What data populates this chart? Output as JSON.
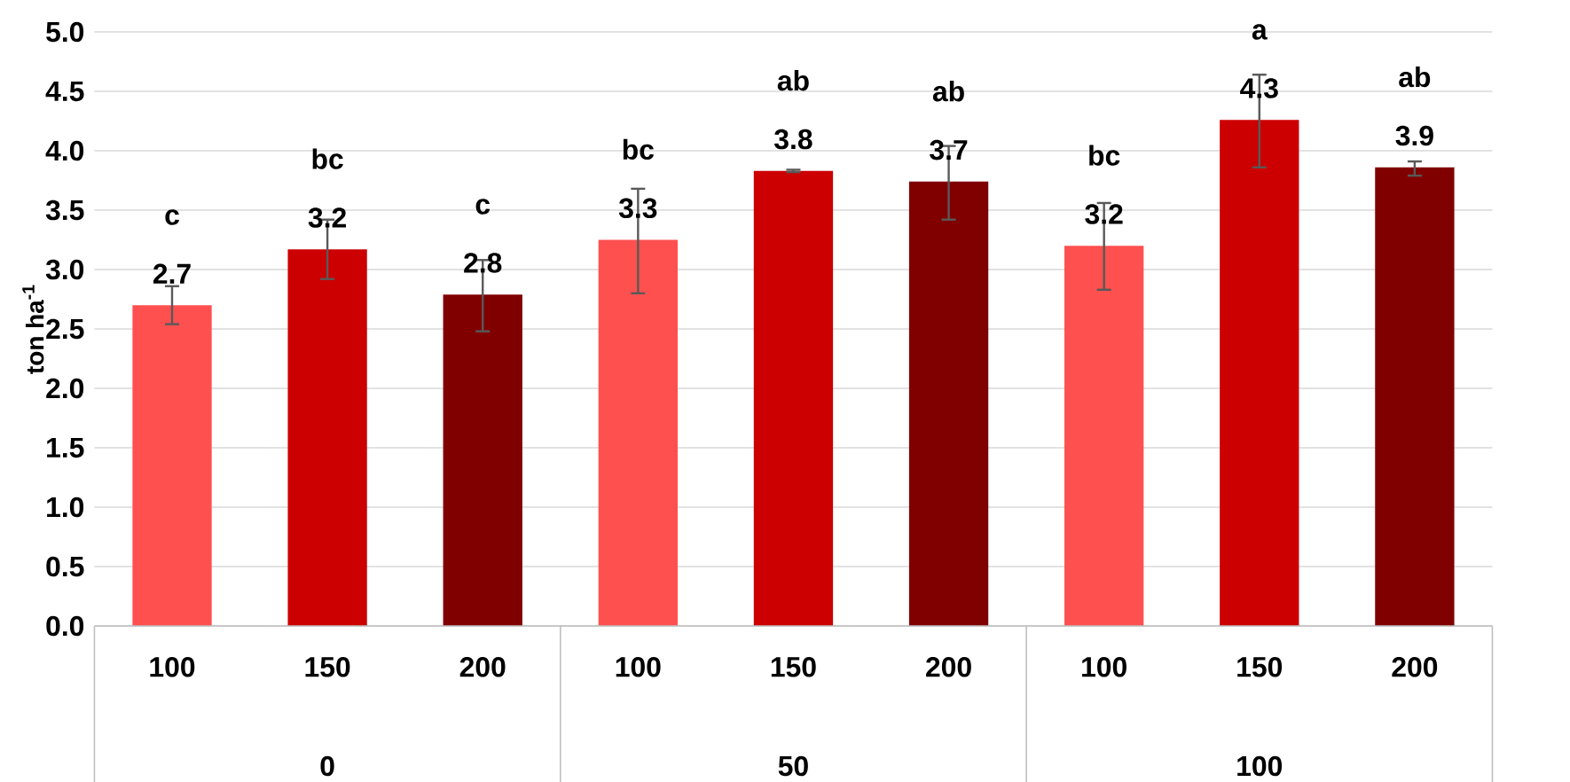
{
  "chart_data": {
    "type": "bar",
    "ylabel": "ton ha$^{-1}$",
    "categories": [
      "100",
      "150",
      "200",
      "100",
      "150",
      "200",
      "100",
      "150",
      "200"
    ],
    "values": [
      2.7,
      3.17,
      2.79,
      3.25,
      3.83,
      3.74,
      3.2,
      4.26,
      3.86
    ],
    "value_labels": [
      "2.7",
      "3.2",
      "2.8",
      "3.3",
      "3.8",
      "3.7",
      "3.2",
      "4.3",
      "3.9"
    ],
    "colors": [
      "#ff5050",
      "#cc0000",
      "#800000",
      "#ff5050",
      "#cc0000",
      "#800000",
      "#ff5050",
      "#cc0000",
      "#800000"
    ],
    "errors": [
      [
        2.54,
        2.86
      ],
      [
        2.92,
        3.42
      ],
      [
        2.48,
        3.08
      ],
      [
        2.8,
        3.68
      ],
      [
        3.82,
        3.84
      ],
      [
        3.42,
        4.04
      ],
      [
        2.83,
        3.56
      ],
      [
        3.86,
        4.64
      ],
      [
        3.79,
        3.91
      ]
    ],
    "ylim": [
      0,
      5
    ],
    "yticks": [
      {
        "value": 0,
        "label": "0.0"
      },
      {
        "value": 0.5,
        "label": "0.5"
      },
      {
        "value": 1,
        "label": "1.0"
      },
      {
        "value": 1.5,
        "label": "1.5"
      },
      {
        "value": 2,
        "label": "2.0"
      },
      {
        "value": 2.5,
        "label": "2.5"
      },
      {
        "value": 3,
        "label": "3.0"
      },
      {
        "value": 3.5,
        "label": "3.5"
      },
      {
        "value": 4,
        "label": "4.0"
      },
      {
        "value": 4.5,
        "label": "4.5"
      },
      {
        "value": 5,
        "label": "5.0"
      }
    ],
    "grid": "y",
    "annotations": [
      "c",
      "bc",
      "c",
      "bc",
      "ab",
      "ab",
      "bc",
      "a",
      "ab",
      "0",
      "50",
      "100"
    ]
  }
}
